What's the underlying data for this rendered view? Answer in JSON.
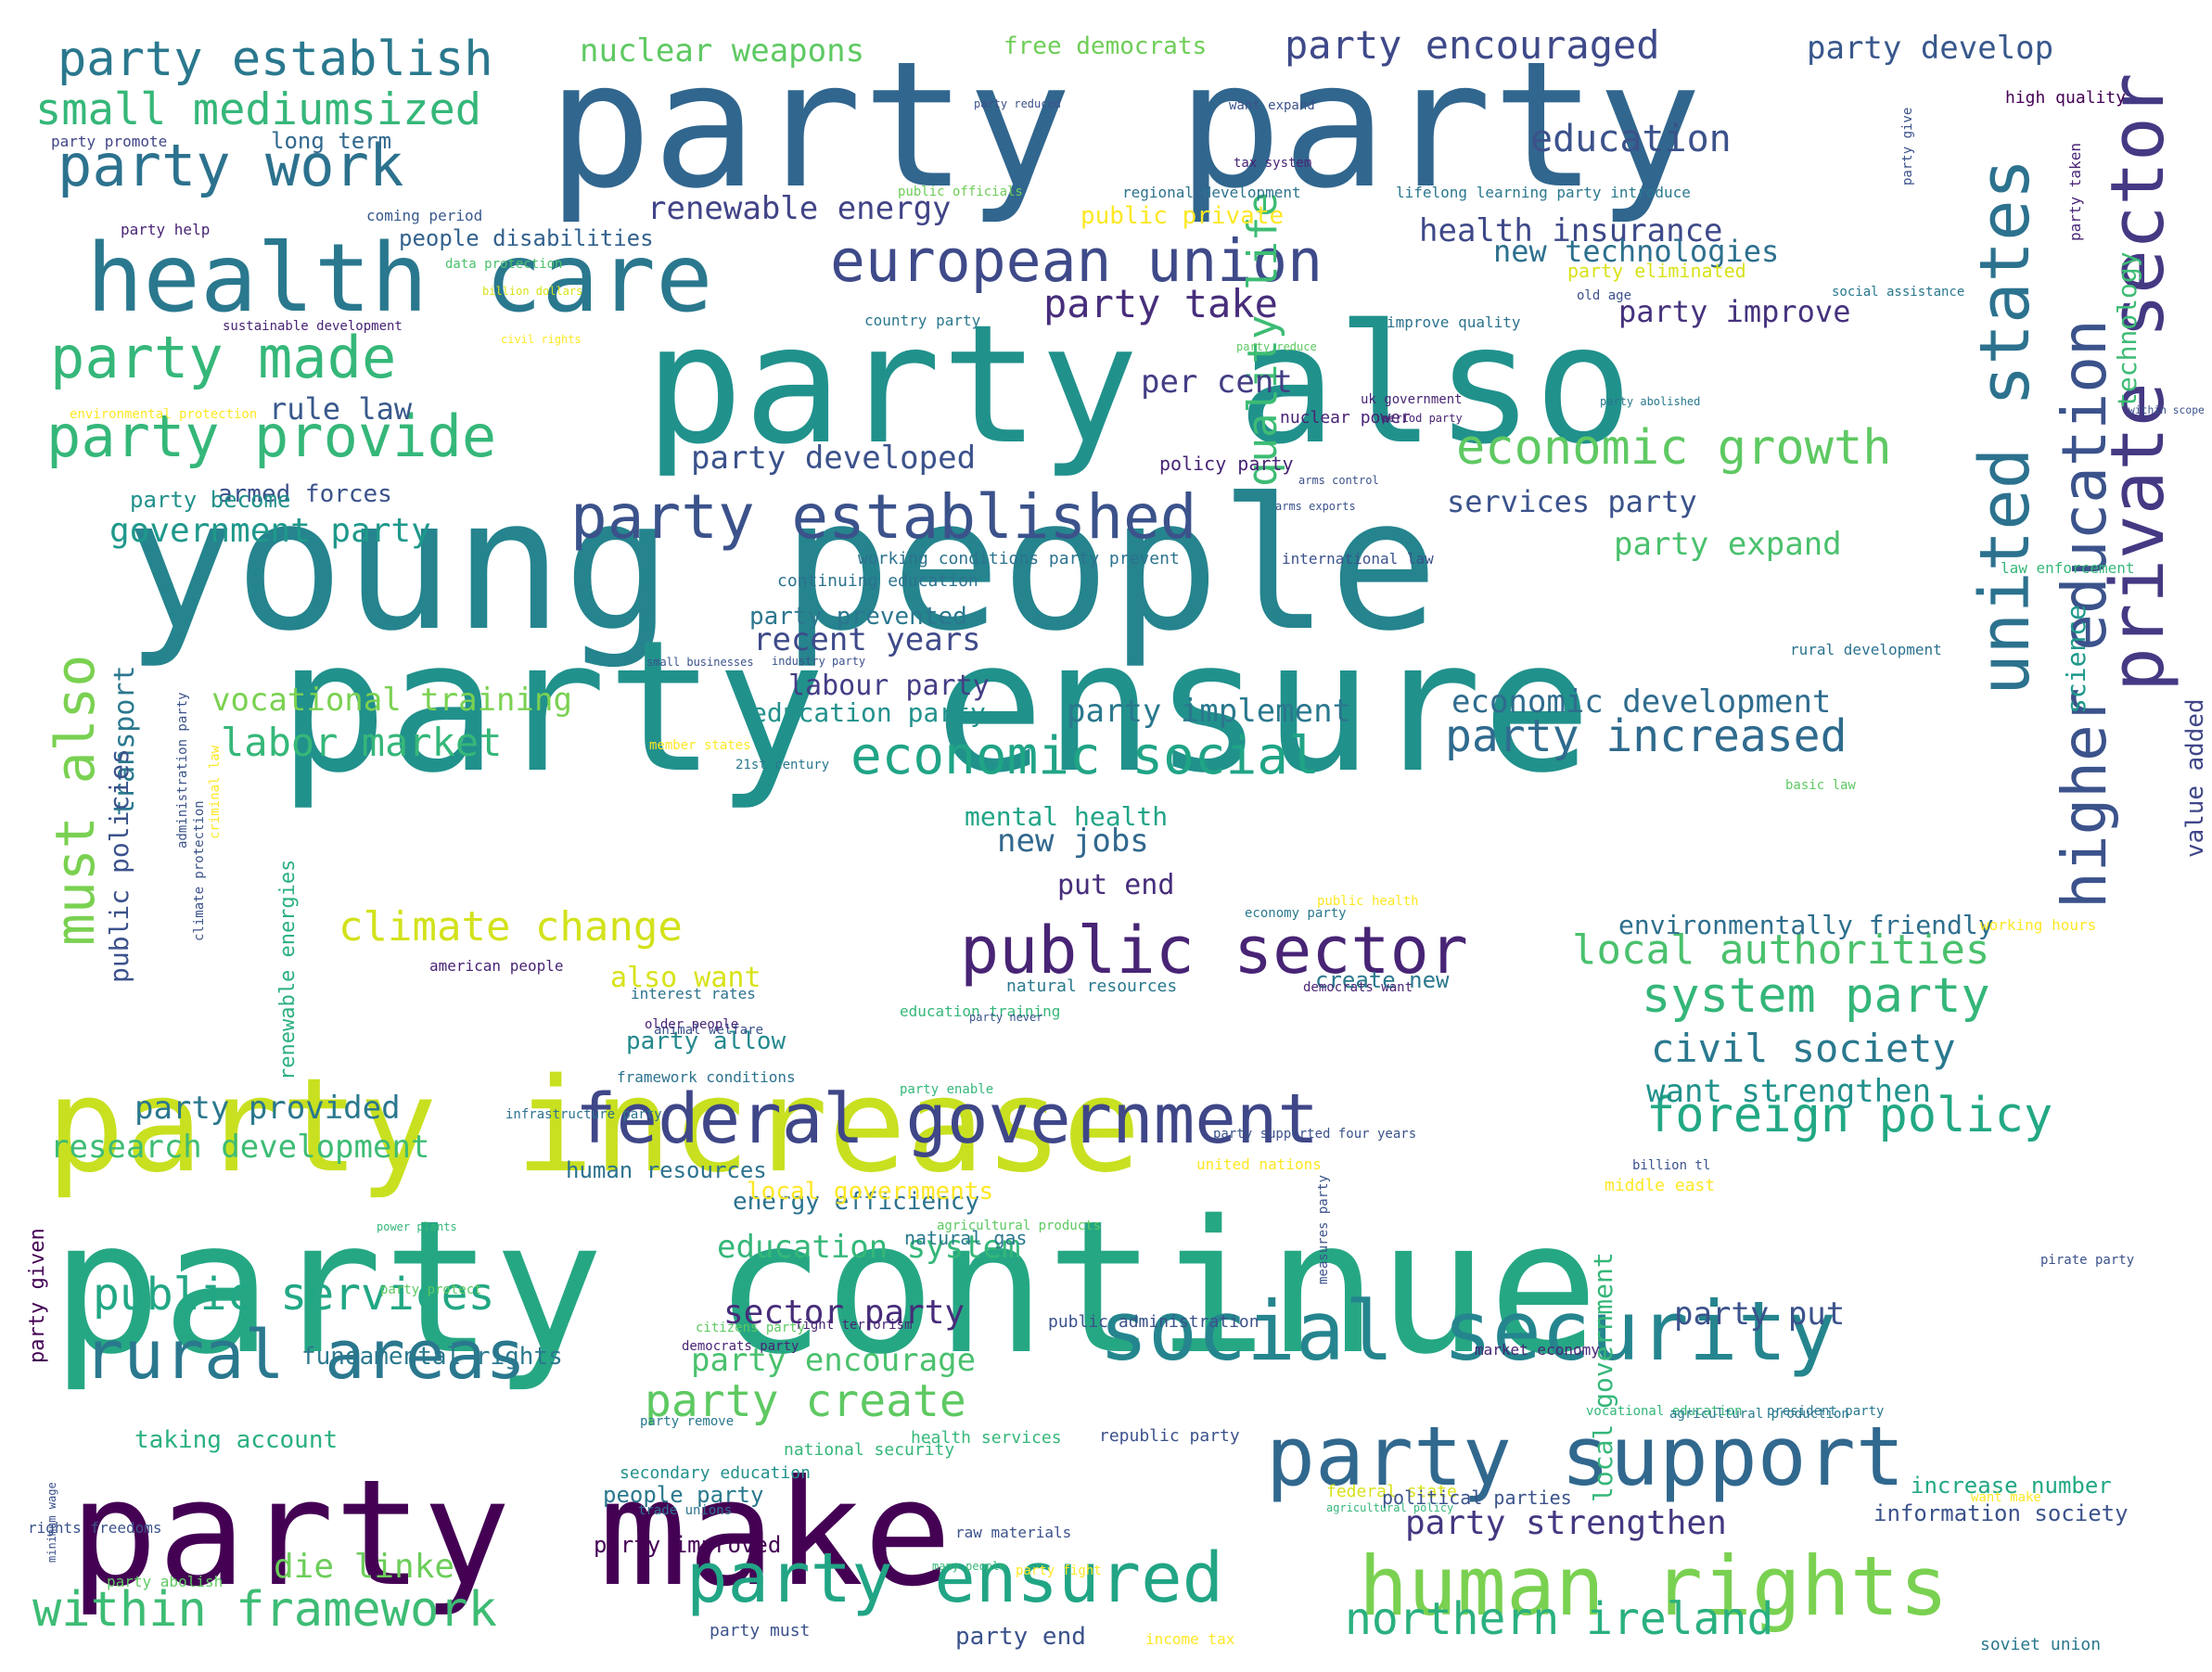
{
  "words": [
    {
      "text": "party party",
      "color": "#31668e"
    },
    {
      "text": "young people",
      "color": "#25848e"
    },
    {
      "text": "party ensure",
      "color": "#21918c"
    },
    {
      "text": "party continue",
      "color": "#26a784"
    },
    {
      "text": "party also",
      "color": "#21918c"
    },
    {
      "text": "party increase",
      "color": "#c8e020"
    },
    {
      "text": "party make",
      "color": "#440154"
    },
    {
      "text": "health care",
      "color": "#2a788e"
    },
    {
      "text": "social security",
      "color": "#25858e"
    },
    {
      "text": "party support",
      "color": "#31688e"
    },
    {
      "text": "human rights",
      "color": "#7ad151"
    },
    {
      "text": "public sector",
      "color": "#482475"
    },
    {
      "text": "european union",
      "color": "#3e4a89"
    },
    {
      "text": "party established",
      "color": "#3b528b"
    },
    {
      "text": "federal government",
      "color": "#3f4788"
    },
    {
      "text": "party ensured",
      "color": "#21a585"
    },
    {
      "text": "rural areas",
      "color": "#2a788e"
    },
    {
      "text": "within framework",
      "color": "#3dbc74"
    },
    {
      "text": "party work",
      "color": "#2c728e"
    },
    {
      "text": "party made",
      "color": "#35b779"
    },
    {
      "text": "party provide",
      "color": "#35b779"
    },
    {
      "text": "party establish",
      "color": "#2a788e"
    },
    {
      "text": "small mediumsized",
      "color": "#35b779"
    },
    {
      "text": "economic growth",
      "color": "#5ec962"
    },
    {
      "text": "economic social",
      "color": "#20a486"
    },
    {
      "text": "public services",
      "color": "#22a785"
    },
    {
      "text": "climate change",
      "color": "#d2e21b"
    },
    {
      "text": "foreign policy",
      "color": "#22a884"
    },
    {
      "text": "party increased",
      "color": "#2f6b8e"
    },
    {
      "text": "system party",
      "color": "#34b679"
    },
    {
      "text": "local authorities",
      "color": "#4ac16d"
    },
    {
      "text": "civil society",
      "color": "#29788e"
    },
    {
      "text": "northern ireland",
      "color": "#2ab07f"
    },
    {
      "text": "party create",
      "color": "#5ec962"
    },
    {
      "text": "party encouraged",
      "color": "#3e4989"
    },
    {
      "text": "nuclear weapons",
      "color": "#5ec962"
    },
    {
      "text": "labor market",
      "color": "#35b779"
    },
    {
      "text": "vocational training",
      "color": "#7ad151"
    },
    {
      "text": "research development",
      "color": "#3dbc74"
    },
    {
      "text": "party take",
      "color": "#472d7b"
    },
    {
      "text": "renewable energy",
      "color": "#414487"
    },
    {
      "text": "party develop",
      "color": "#38588c"
    },
    {
      "text": "private sector",
      "color": "#443983"
    },
    {
      "text": "united states",
      "color": "#2c728e"
    },
    {
      "text": "higher education",
      "color": "#3b528b"
    },
    {
      "text": "must also",
      "color": "#7ad151"
    },
    {
      "text": "quality life",
      "color": "#3dbc74"
    },
    {
      "text": "education",
      "color": "#3b528b"
    },
    {
      "text": "party strengthen",
      "color": "#453781"
    },
    {
      "text": "die linke",
      "color": "#6ccd5a"
    },
    {
      "text": "party provided",
      "color": "#2a788e"
    },
    {
      "text": "party encourage",
      "color": "#4ac16d"
    },
    {
      "text": "sector party",
      "color": "#472c7a"
    },
    {
      "text": "education system",
      "color": "#35b779"
    },
    {
      "text": "energy efficiency",
      "color": "#2c728e"
    },
    {
      "text": "government party",
      "color": "#1f988b"
    },
    {
      "text": "party expand",
      "color": "#4ac16d"
    },
    {
      "text": "party implement",
      "color": "#2a788e"
    },
    {
      "text": "economic development",
      "color": "#2f6c8e"
    },
    {
      "text": "health insurance",
      "color": "#3e4989"
    },
    {
      "text": "new technologies",
      "color": "#2d708e"
    },
    {
      "text": "party improve",
      "color": "#46327e"
    },
    {
      "text": "services party",
      "color": "#3b528b"
    },
    {
      "text": "new jobs",
      "color": "#31688e"
    },
    {
      "text": "put end",
      "color": "#472d7b"
    },
    {
      "text": "mental health",
      "color": "#20a486"
    },
    {
      "text": "also want",
      "color": "#d8e219"
    },
    {
      "text": "party allow",
      "color": "#23898e"
    },
    {
      "text": "party put",
      "color": "#3b528b"
    },
    {
      "text": "want strengthen",
      "color": "#21918c"
    },
    {
      "text": "party developed",
      "color": "#3b528b"
    },
    {
      "text": "rule law",
      "color": "#38598c"
    },
    {
      "text": "per cent",
      "color": "#433e85"
    },
    {
      "text": "recent years",
      "color": "#3e4a89"
    },
    {
      "text": "labour party",
      "color": "#433e85"
    },
    {
      "text": "education party",
      "color": "#21918c"
    },
    {
      "text": "party prevented",
      "color": "#2a778e"
    },
    {
      "text": "people disabilities",
      "color": "#33628d"
    },
    {
      "text": "public private",
      "color": "#fde725"
    },
    {
      "text": "long term",
      "color": "#31688e"
    },
    {
      "text": "free democrats",
      "color": "#6ece58"
    },
    {
      "text": "armed forces",
      "color": "#3b528b"
    },
    {
      "text": "party become",
      "color": "#21918c"
    },
    {
      "text": "environmentally friendly",
      "color": "#2e6f8e"
    },
    {
      "text": "create new",
      "color": "#2a788e"
    },
    {
      "text": "people party",
      "color": "#2a788e"
    },
    {
      "text": "party improved",
      "color": "#440154"
    },
    {
      "text": "information society",
      "color": "#3b528b"
    },
    {
      "text": "increase number",
      "color": "#22a884"
    },
    {
      "text": "fundamental rights",
      "color": "#2a788e"
    },
    {
      "text": "taking account",
      "color": "#2ab07f"
    },
    {
      "text": "local governments",
      "color": "#fde725"
    },
    {
      "text": "human resources",
      "color": "#2c728e"
    },
    {
      "text": "party end",
      "color": "#3b528b"
    },
    {
      "text": "mediumsized enterprises",
      "color": "#5ec962"
    },
    {
      "text": "technology",
      "color": "#3dbc74"
    },
    {
      "text": "science",
      "color": "#1f988b"
    },
    {
      "text": "value added",
      "color": "#404688"
    },
    {
      "text": "transport",
      "color": "#2a788e"
    },
    {
      "text": "public policies",
      "color": "#3b528b"
    },
    {
      "text": "renewable energies",
      "color": "#2ab07f"
    },
    {
      "text": "local government",
      "color": "#35b779"
    },
    {
      "text": "party given",
      "color": "#440154"
    },
    {
      "text": "party abolish",
      "color": "#5ec962"
    },
    {
      "text": "party promote",
      "color": "#404688"
    },
    {
      "text": "party help",
      "color": "#482475"
    },
    {
      "text": "coming period",
      "color": "#38598c"
    },
    {
      "text": "data protection",
      "color": "#4ac16d"
    },
    {
      "text": "sustainable development",
      "color": "#482475"
    },
    {
      "text": "public officials",
      "color": "#6ece58"
    },
    {
      "text": "regional development",
      "color": "#2c728e"
    },
    {
      "text": "lifelong learning party introduce",
      "color": "#2a788e"
    },
    {
      "text": "party eliminated",
      "color": "#d8e219"
    },
    {
      "text": "country party",
      "color": "#2a788e"
    },
    {
      "text": "improve quality",
      "color": "#2c728e"
    },
    {
      "text": "nuclear power",
      "color": "#482475"
    },
    {
      "text": "policy party",
      "color": "#482475"
    },
    {
      "text": "working conditions party prevent",
      "color": "#2c728e"
    },
    {
      "text": "international law",
      "color": "#3b528b"
    },
    {
      "text": "continuing education",
      "color": "#2c728e"
    },
    {
      "text": "high quality",
      "color": "#440154"
    },
    {
      "text": "party taken",
      "color": "#482475"
    },
    {
      "text": "within scope",
      "color": "#3b528b"
    },
    {
      "text": "law enforcement",
      "color": "#35b779"
    },
    {
      "text": "rural development",
      "color": "#2c728e"
    },
    {
      "text": "middle east",
      "color": "#fde725"
    },
    {
      "text": "natural gas",
      "color": "#2a788e"
    },
    {
      "text": "united nations",
      "color": "#fde725"
    },
    {
      "text": "public administration",
      "color": "#3b528b"
    },
    {
      "text": "market economy",
      "color": "#482475"
    },
    {
      "text": "republic party",
      "color": "#3b528b"
    },
    {
      "text": "national security",
      "color": "#35b779"
    },
    {
      "text": "secondary education",
      "color": "#21918c"
    },
    {
      "text": "health services",
      "color": "#35b779"
    },
    {
      "text": "federal state",
      "color": "#d8e219"
    },
    {
      "text": "political parties",
      "color": "#3b528b"
    },
    {
      "text": "vocational education",
      "color": "#35b779"
    },
    {
      "text": "president party",
      "color": "#2a788e"
    },
    {
      "text": "pirate party",
      "color": "#3b528b"
    },
    {
      "text": "soviet union",
      "color": "#2a788e"
    },
    {
      "text": "income tax",
      "color": "#fde725"
    },
    {
      "text": "party must",
      "color": "#3b528b"
    },
    {
      "text": "american people",
      "color": "#482475"
    },
    {
      "text": "natural resources",
      "color": "#2a788e"
    },
    {
      "text": "interest rates",
      "color": "#2c728e"
    },
    {
      "text": "education training",
      "color": "#35b779"
    },
    {
      "text": "public health",
      "color": "#fde725"
    },
    {
      "text": "animal welfare",
      "color": "#3b528b"
    },
    {
      "text": "framework conditions",
      "color": "#2c728e"
    },
    {
      "text": "party enable",
      "color": "#35b779"
    },
    {
      "text": "agricultural products",
      "color": "#5ec962"
    },
    {
      "text": "agricultural production",
      "color": "#2a788e"
    },
    {
      "text": "working hours",
      "color": "#fde725"
    },
    {
      "text": "citizens party",
      "color": "#5ec962"
    },
    {
      "text": "rights freedoms",
      "color": "#3b528b"
    },
    {
      "text": "minimum wage",
      "color": "#3b528b"
    },
    {
      "text": "administration party",
      "color": "#3b528b"
    },
    {
      "text": "climate protection",
      "color": "#3b528b"
    },
    {
      "text": "criminal law",
      "color": "#fde725"
    },
    {
      "text": "member states",
      "color": "#fde725"
    },
    {
      "text": "21st century",
      "color": "#2a788e"
    },
    {
      "text": "small businesses",
      "color": "#3b528b"
    },
    {
      "text": "industry party",
      "color": "#3b528b"
    },
    {
      "text": "basic law",
      "color": "#5ec962"
    },
    {
      "text": "measures party",
      "color": "#3b528b"
    },
    {
      "text": "want make",
      "color": "#fde725"
    },
    {
      "text": "party fight",
      "color": "#fde725"
    },
    {
      "text": "many people",
      "color": "#35b779"
    },
    {
      "text": "agricultural policy",
      "color": "#35b779"
    },
    {
      "text": "trade unions",
      "color": "#2c728e"
    },
    {
      "text": "raw materials",
      "color": "#3b528b"
    },
    {
      "text": "party remove",
      "color": "#2a788e"
    },
    {
      "text": "democrats party",
      "color": "#482475"
    },
    {
      "text": "fight terrorism",
      "color": "#482475"
    },
    {
      "text": "party protect",
      "color": "#5ec962"
    },
    {
      "text": "power plants",
      "color": "#35b779"
    },
    {
      "text": "party supported four years",
      "color": "#3b528b"
    },
    {
      "text": "billion tl",
      "color": "#3b528b"
    },
    {
      "text": "infrastructure party",
      "color": "#2c728e"
    },
    {
      "text": "older people",
      "color": "#482475"
    },
    {
      "text": "party never",
      "color": "#3b528b"
    },
    {
      "text": "democrats want",
      "color": "#482475"
    },
    {
      "text": "economy party",
      "color": "#2a788e"
    },
    {
      "text": "party reduced",
      "color": "#3b528b"
    },
    {
      "text": "want expand",
      "color": "#3b528b"
    },
    {
      "text": "tax system",
      "color": "#482475"
    },
    {
      "text": "party give",
      "color": "#3b528b"
    },
    {
      "text": "social assistance",
      "color": "#2a788e"
    },
    {
      "text": "party reduce",
      "color": "#5ec962"
    },
    {
      "text": "uk government",
      "color": "#482475"
    },
    {
      "text": "period party",
      "color": "#482475"
    },
    {
      "text": "environmental protection",
      "color": "#fde725"
    },
    {
      "text": "billion dollars",
      "color": "#d8e219"
    },
    {
      "text": "civil rights",
      "color": "#fde725"
    },
    {
      "text": "old age",
      "color": "#3b528b"
    },
    {
      "text": "arms control",
      "color": "#3b528b"
    },
    {
      "text": "arms exports",
      "color": "#3b528b"
    },
    {
      "text": "party abolished",
      "color": "#2a788e"
    }
  ]
}
